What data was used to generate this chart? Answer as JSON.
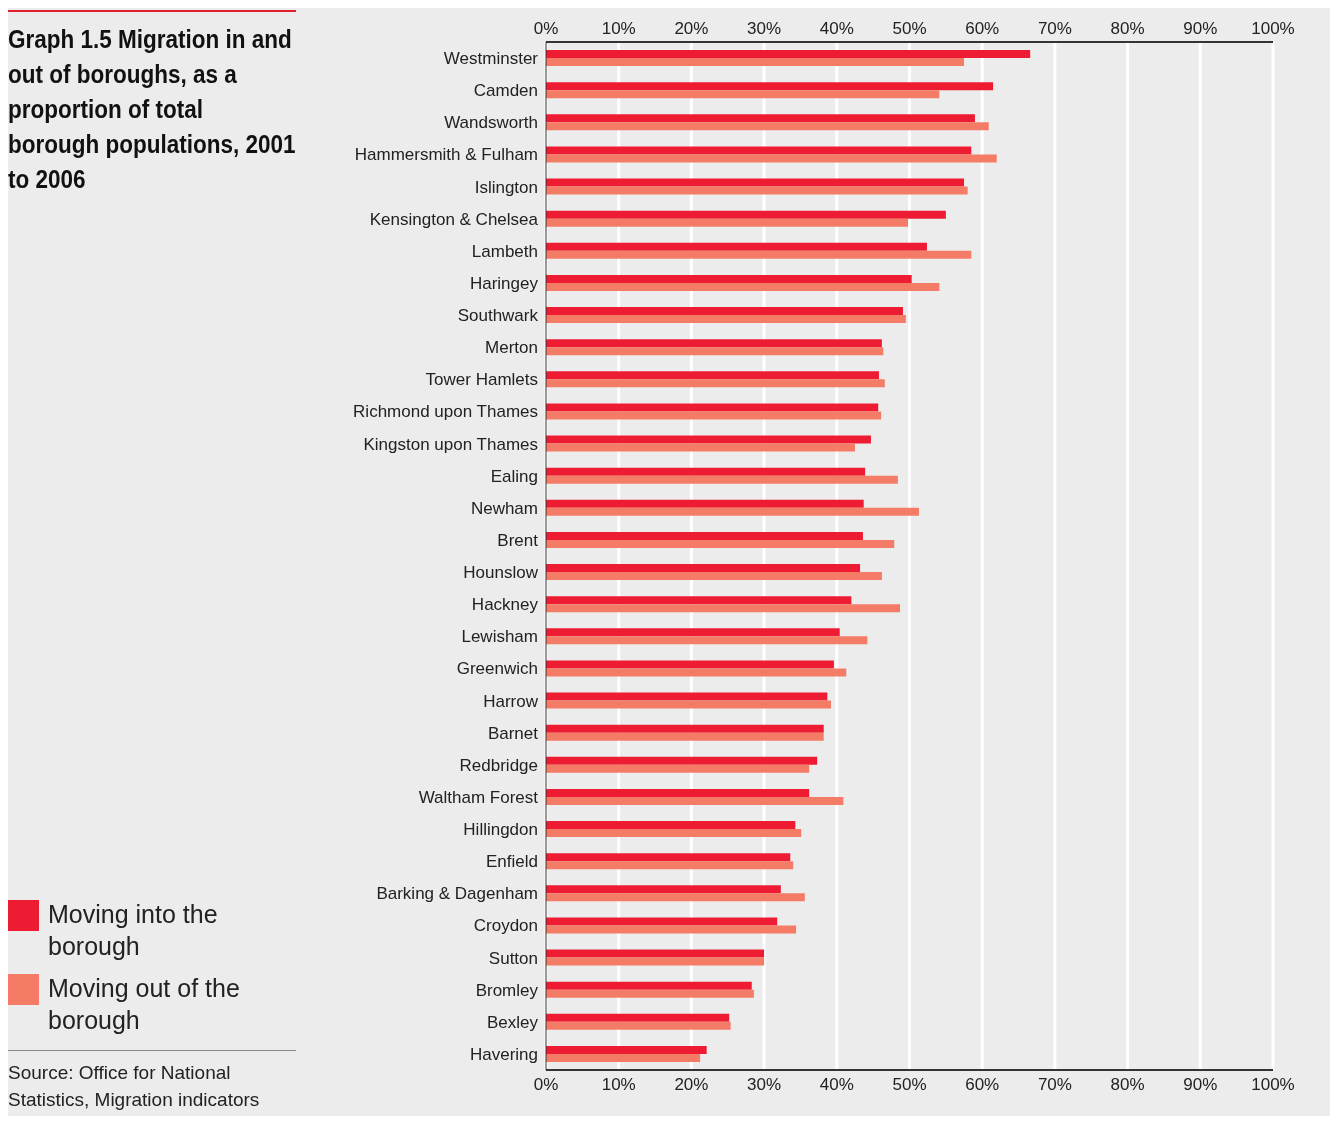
{
  "chart_data": {
    "type": "bar",
    "orientation": "horizontal",
    "title": "Graph 1.5 Migration in and out of boroughs, as a proportion of total borough populations, 2001 to 2006",
    "categories": [
      "Westminster",
      "Camden",
      "Wandsworth",
      "Hammersmith & Fulham",
      "Islington",
      "Kensington & Chelsea",
      "Lambeth",
      "Haringey",
      "Southwark",
      "Merton",
      "Tower Hamlets",
      "Richmond upon Thames",
      "Kingston upon Thames",
      "Ealing",
      "Newham",
      "Brent",
      "Hounslow",
      "Hackney",
      "Lewisham",
      "Greenwich",
      "Harrow",
      "Barnet",
      "Redbridge",
      "Waltham Forest",
      "Hillingdon",
      "Enfield",
      "Barking & Dagenham",
      "Croydon",
      "Sutton",
      "Bromley",
      "Bexley",
      "Havering"
    ],
    "series": [
      {
        "name": "Moving into the borough",
        "color": "#ed1c33",
        "values": [
          66.6,
          61.5,
          59.0,
          58.5,
          57.5,
          55.0,
          52.4,
          50.3,
          49.1,
          46.2,
          45.8,
          45.7,
          44.7,
          43.9,
          43.7,
          43.6,
          43.2,
          42.0,
          40.4,
          39.6,
          38.7,
          38.2,
          37.3,
          36.2,
          34.3,
          33.6,
          32.3,
          31.8,
          30.0,
          28.3,
          25.2,
          22.1
        ]
      },
      {
        "name": "Moving out of the borough",
        "color": "#f47c67",
        "values": [
          57.5,
          54.1,
          60.9,
          62.0,
          58.0,
          49.8,
          58.5,
          54.1,
          49.5,
          46.4,
          46.6,
          46.1,
          42.5,
          48.4,
          51.3,
          47.9,
          46.2,
          48.7,
          44.2,
          41.3,
          39.2,
          38.2,
          36.2,
          40.9,
          35.1,
          34.0,
          35.6,
          34.4,
          30.0,
          28.6,
          25.4,
          21.2
        ]
      }
    ],
    "xlim": [
      0,
      100
    ],
    "xticks": [
      {
        "value": 0,
        "label": "0%"
      },
      {
        "value": 10,
        "label": "10%"
      },
      {
        "value": 20,
        "label": "20%"
      },
      {
        "value": 30,
        "label": "30%"
      },
      {
        "value": 40,
        "label": "40%"
      },
      {
        "value": 50,
        "label": "50%"
      },
      {
        "value": 60,
        "label": "60%"
      },
      {
        "value": 70,
        "label": "70%"
      },
      {
        "value": 80,
        "label": "80%"
      },
      {
        "value": 90,
        "label": "90%"
      },
      {
        "value": 100,
        "label": "100%"
      }
    ],
    "x2lim": [
      0,
      100
    ],
    "x2ticks": [
      {
        "value": 0,
        "label": "0%"
      },
      {
        "value": 10,
        "label": "10%"
      },
      {
        "value": 20,
        "label": "20%"
      },
      {
        "value": 30,
        "label": "30%"
      },
      {
        "value": 40,
        "label": "40%"
      },
      {
        "value": 50,
        "label": "50%"
      },
      {
        "value": 60,
        "label": "60%"
      },
      {
        "value": 70,
        "label": "70%"
      },
      {
        "value": 80,
        "label": "80%"
      },
      {
        "value": 90,
        "label": "90%"
      },
      {
        "value": 100,
        "label": "100%"
      }
    ],
    "grid": "x",
    "legend": "left",
    "annotations": [
      "Source: Office for National Statistics, Migration indicators"
    ]
  }
}
